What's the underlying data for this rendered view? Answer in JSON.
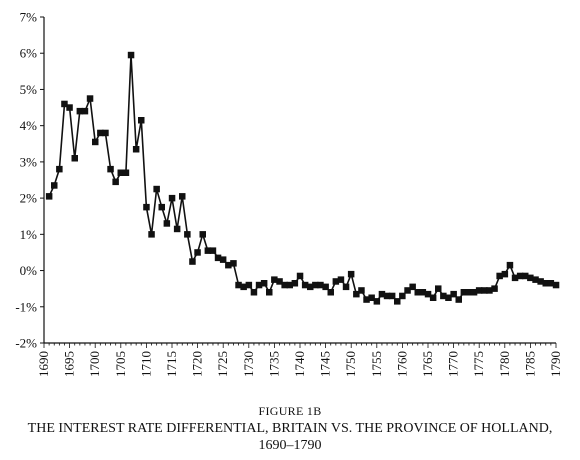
{
  "figure": {
    "label": "FIGURE 1B",
    "title": "THE INTEREST RATE DIFFERENTIAL, BRITAIN VS. THE PROVINCE OF HOLLAND,",
    "title_years": "1690–1790"
  },
  "chart_data": {
    "type": "line",
    "title": "",
    "xlabel": "",
    "ylabel": "",
    "xlim": [
      1690,
      1790
    ],
    "ylim": [
      -2,
      7
    ],
    "x_ticks": [
      1690,
      1695,
      1700,
      1705,
      1710,
      1715,
      1720,
      1725,
      1730,
      1735,
      1740,
      1745,
      1750,
      1755,
      1760,
      1765,
      1770,
      1775,
      1780,
      1785,
      1790
    ],
    "y_ticks": [
      -2,
      -1,
      0,
      1,
      2,
      3,
      4,
      5,
      6,
      7
    ],
    "y_tick_labels": [
      "-2%",
      "-1%",
      "0%",
      "1%",
      "2%",
      "3%",
      "4%",
      "5%",
      "6%",
      "7%"
    ],
    "grid": false,
    "legend": "none",
    "marker": "square",
    "color": "#111111",
    "x": [
      1691,
      1692,
      1693,
      1694,
      1695,
      1696,
      1697,
      1698,
      1699,
      1700,
      1701,
      1702,
      1703,
      1704,
      1705,
      1706,
      1707,
      1708,
      1709,
      1710,
      1711,
      1712,
      1713,
      1714,
      1715,
      1716,
      1717,
      1718,
      1719,
      1720,
      1721,
      1722,
      1723,
      1724,
      1725,
      1726,
      1727,
      1728,
      1729,
      1730,
      1731,
      1732,
      1733,
      1734,
      1735,
      1736,
      1737,
      1738,
      1739,
      1740,
      1741,
      1742,
      1743,
      1744,
      1745,
      1746,
      1747,
      1748,
      1749,
      1750,
      1751,
      1752,
      1753,
      1754,
      1755,
      1756,
      1757,
      1758,
      1759,
      1760,
      1761,
      1762,
      1763,
      1764,
      1765,
      1766,
      1767,
      1768,
      1769,
      1770,
      1771,
      1772,
      1773,
      1774,
      1775,
      1776,
      1777,
      1778,
      1779,
      1780,
      1781,
      1782,
      1783,
      1784,
      1785,
      1786,
      1787,
      1788,
      1789,
      1790
    ],
    "values": [
      2.05,
      2.35,
      2.8,
      4.6,
      4.5,
      3.1,
      4.4,
      4.4,
      4.75,
      3.55,
      3.8,
      3.8,
      2.8,
      2.45,
      2.7,
      2.7,
      5.95,
      3.35,
      4.15,
      1.75,
      1.0,
      2.25,
      1.75,
      1.3,
      2.0,
      1.15,
      2.05,
      1.0,
      0.25,
      0.5,
      1.0,
      0.55,
      0.55,
      0.35,
      0.3,
      0.15,
      0.2,
      -0.4,
      -0.45,
      -0.4,
      -0.6,
      -0.4,
      -0.35,
      -0.6,
      -0.25,
      -0.3,
      -0.4,
      -0.4,
      -0.35,
      -0.15,
      -0.4,
      -0.45,
      -0.4,
      -0.4,
      -0.45,
      -0.6,
      -0.3,
      -0.25,
      -0.45,
      -0.1,
      -0.65,
      -0.55,
      -0.8,
      -0.75,
      -0.85,
      -0.65,
      -0.7,
      -0.7,
      -0.85,
      -0.7,
      -0.55,
      -0.45,
      -0.6,
      -0.6,
      -0.65,
      -0.75,
      -0.5,
      -0.7,
      -0.75,
      -0.65,
      -0.8,
      -0.6,
      -0.6,
      -0.6,
      -0.55,
      -0.55,
      -0.55,
      -0.5,
      -0.15,
      -0.1,
      0.15,
      -0.2,
      -0.15,
      -0.15,
      -0.2,
      -0.25,
      -0.3,
      -0.35,
      -0.35,
      -0.4
    ]
  }
}
